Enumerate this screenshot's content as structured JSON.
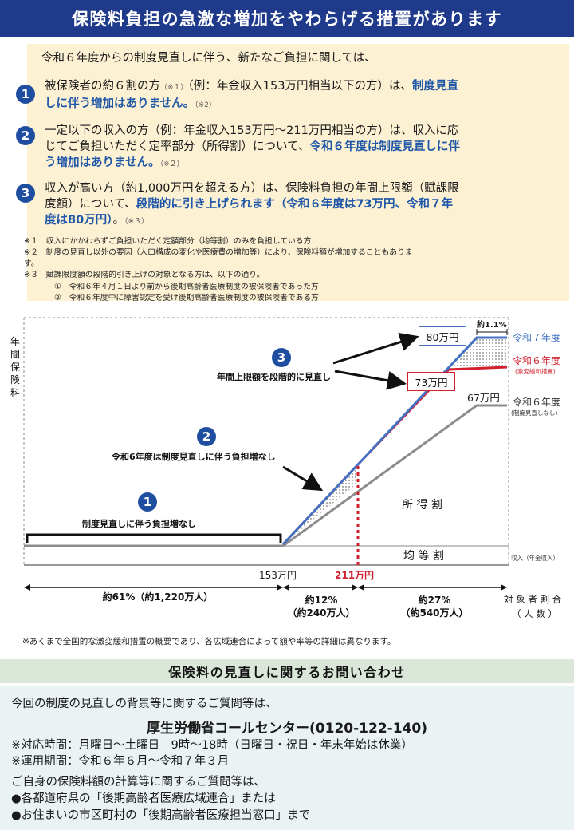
{
  "title": "保険料負担の急激な増加をやわらげる措置があります",
  "intro": "令和６年度からの制度見直しに伴う、新たなご負担に関しては、",
  "items": [
    {
      "number": "1",
      "line1_a": "被保険者の約６割の方",
      "line1_mark": "（※１）",
      "line1_b": "（例：年金収入153万円相当以下の方）は、",
      "line1_hl": "制度見直",
      "line2_hl": "しに伴う増加はありません。",
      "line2_mark": "（※2）"
    },
    {
      "number": "2",
      "line1": "一定以下の収入の方（例：年金収入153万円～211万円相当の方）は、収入に応",
      "line2_a": "じてご負担いただく定率部分（所得割）について、",
      "line2_hl": "令和６年度は制度見直しに伴",
      "line3_hl": "う増加はありません。",
      "line3_mark": "（※２）"
    },
    {
      "number": "3",
      "line1": "収入が高い方（約1,000万円を超える方）は、保険料負担の年間上限額（賦課限",
      "line2_a": "度額）について、",
      "line2_hl": "段階的に引き上げられます（令和６年度は73万円、令和７年",
      "line3_hl": "度は80万円）",
      "line3_b": "。",
      "line3_mark": "（※３）"
    }
  ],
  "notes": [
    "※１　収入にかかわらずご負担いただく定額部分（均等割）のみを負担している方",
    "※２　制度の見直し以外の要因（人口構成の変化や医療費の増加等）により、保険料額が増加することもありま",
    "す。",
    "※３　賦課限度額の段階的引き上げの対象となる方は、以下の通り。"
  ],
  "subnotes": [
    "①　令和６年４月１日より前から後期高齢者医療制度の被保険者であった方",
    "②　令和６年度中に障害認定を受け後期高齢者医療制度の被保険者である方"
  ],
  "chart": {
    "y_axis_label": "年間保険料",
    "x_axis_label": "収入（年金収入）",
    "badges": [
      "1",
      "2",
      "3"
    ],
    "label_1": "制度見直しに伴う負担増なし",
    "label_2": "令和6年度は制度見直しに伴う負担増なし",
    "label_3": "年間上限額を段階的に見直し",
    "val_80": "80万円",
    "val_73": "73万円",
    "val_67": "67万円",
    "pct_note": "約1.1%",
    "legend_r7": "令和７年度",
    "legend_r6": "令和６年度",
    "legend_r6_sub": "(激変緩和措置)",
    "legend_r6b": "令和６年度",
    "legend_r6b_sub": "(制度見直しなし)",
    "area_income": "所 得 割",
    "area_flat": "均 等 割",
    "x_153": "153万円",
    "x_211": "211万円",
    "seg_1": "約61%（約1,220万人）",
    "seg_2_a": "約12%",
    "seg_2_b": "（約240万人）",
    "seg_3_a": "約27%",
    "seg_3_b": "（約540万人）",
    "target_a": "対 象 者 割 合",
    "target_b": "（ 人 数 ）",
    "colors": {
      "r7": "#4472c4",
      "r6": "#d0202e",
      "base": "#8c8c8c"
    }
  },
  "footnote": "※あくまで全国的な激変緩和措置の概要であり、各広域連合によって額や率等の詳細は異なります。",
  "contact": {
    "heading": "保険料の見直しに関するお問い合わせ",
    "line1": "今回の制度の見直しの背景等に関するご質問等は、",
    "center_name": "厚生労働省コールセンター(0120-122-140)",
    "hours": "※対応時間：月曜日～土曜日　9時～18時（日曜日・祝日・年末年始は休業）",
    "period": "※運用期間：令和６年６月～令和７年３月",
    "line2": "ご自身の保険料額の計算等に関するご質問等は、",
    "bullet1": "●各都道府県の「後期高齢者医療広域連合」または",
    "bullet2": "●お住まいの市区町村の「後期高齢者医療担当窓口」まで"
  }
}
